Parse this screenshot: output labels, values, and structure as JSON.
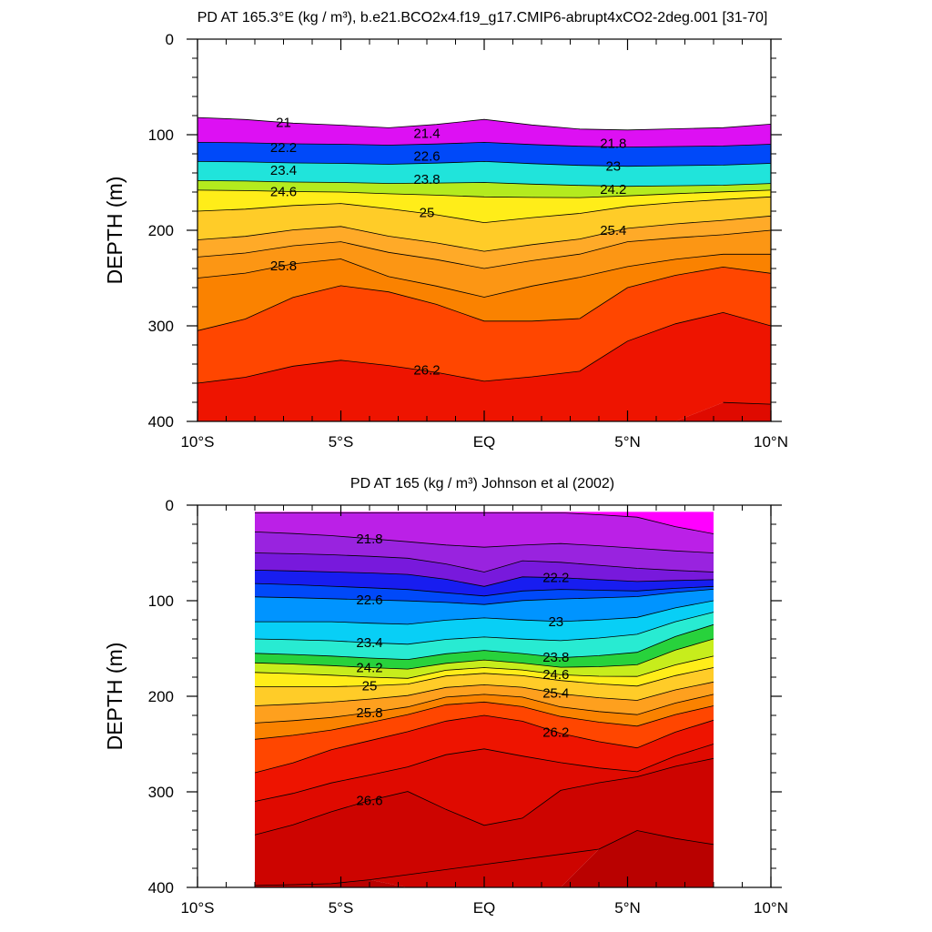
{
  "panels": [
    {
      "title": "PD AT 165.3°E (kg / m³), b.e21.BCO2x4.f19_g17.CMIP6-abrupt4xCO2-2deg.001 [31-70]",
      "ylabel": "DEPTH (m)"
    },
    {
      "title": "PD AT 165 (kg / m³) Johnson et al (2002)",
      "ylabel": "DEPTH (m)"
    }
  ],
  "chart_data": [
    {
      "type": "heatmap",
      "subtype": "filled-contour depth section",
      "title": "PD AT 165.3°E (kg / m³), b.e21.BCO2x4.f19_g17.CMIP6-abrupt4xCO2-2deg.001 [31-70]",
      "xlabel": "",
      "ylabel": "DEPTH (m)",
      "xlim": [
        -10,
        10
      ],
      "ylim": [
        400,
        0
      ],
      "x_ticks": [
        -10,
        -5,
        0,
        5,
        10
      ],
      "x_tick_labels": [
        "10°S",
        "5°S",
        "EQ",
        "5°N",
        "10°N"
      ],
      "y_ticks": [
        0,
        100,
        200,
        300,
        400
      ],
      "y_tick_labels": [
        "0",
        "100",
        "200",
        "300",
        "400"
      ],
      "x_range": [
        -10,
        10
      ],
      "contour_interval": 0.2,
      "x": [
        -10,
        -5,
        -3,
        0,
        3,
        5,
        8,
        10
      ],
      "contours": [
        {
          "level": 21.0,
          "depth": [
            82,
            90,
            93,
            84,
            94,
            95,
            93,
            89
          ]
        },
        {
          "level": 22.0,
          "depth": [
            108,
            110,
            111,
            108,
            112,
            113,
            112,
            110
          ]
        },
        {
          "level": 23.0,
          "depth": [
            128,
            130,
            131,
            128,
            132,
            133,
            132,
            130
          ]
        },
        {
          "level": 24.0,
          "depth": [
            148,
            150,
            151,
            150,
            153,
            154,
            153,
            151
          ]
        },
        {
          "level": 24.6,
          "depth": [
            158,
            160,
            162,
            165,
            166,
            164,
            160,
            158
          ]
        },
        {
          "level": 25.0,
          "depth": [
            180,
            172,
            178,
            192,
            183,
            175,
            168,
            165
          ]
        },
        {
          "level": 25.4,
          "depth": [
            210,
            196,
            207,
            222,
            210,
            198,
            190,
            185
          ]
        },
        {
          "level": 25.6,
          "depth": [
            228,
            212,
            224,
            240,
            226,
            212,
            205,
            200
          ]
        },
        {
          "level": 25.8,
          "depth": [
            250,
            230,
            250,
            270,
            250,
            238,
            225,
            225
          ]
        },
        {
          "level": 26.0,
          "depth": [
            305,
            258,
            265,
            295,
            295,
            260,
            238,
            245
          ]
        },
        {
          "level": 26.2,
          "depth": [
            360,
            336,
            342,
            358,
            350,
            316,
            285,
            300
          ]
        },
        {
          "level": 26.4,
          "depth": [
            999,
            999,
            999,
            999,
            999,
            999,
            380,
            382
          ]
        }
      ],
      "contour_labels": [
        "21",
        "21.4",
        "21.8",
        "22.2",
        "22.6",
        "23",
        "23.4",
        "23.8",
        "24.2",
        "24.6",
        "25",
        "25.4",
        "25.8",
        "26.2"
      ]
    },
    {
      "type": "heatmap",
      "subtype": "filled-contour depth section",
      "title": "PD AT 165 (kg / m³) Johnson et al (2002)",
      "xlabel": "",
      "ylabel": "DEPTH (m)",
      "xlim": [
        -10,
        10
      ],
      "ylim": [
        400,
        0
      ],
      "x_ticks": [
        -10,
        -5,
        0,
        5,
        10
      ],
      "x_tick_labels": [
        "10°S",
        "5°S",
        "EQ",
        "5°N",
        "10°N"
      ],
      "y_ticks": [
        0,
        100,
        200,
        300,
        400
      ],
      "y_tick_labels": [
        "0",
        "100",
        "200",
        "300",
        "400"
      ],
      "x_range": [
        -8,
        8
      ],
      "contour_interval": 0.2,
      "x": [
        -8,
        -5,
        -3,
        -1,
        0,
        1,
        3,
        5,
        8
      ],
      "contours": [
        {
          "level": 21.6,
          "depth": [
            8,
            8,
            8,
            8,
            8,
            8,
            8,
            12,
            30
          ]
        },
        {
          "level": 21.8,
          "depth": [
            28,
            32,
            38,
            42,
            44,
            42,
            40,
            45,
            50
          ]
        },
        {
          "level": 22.0,
          "depth": [
            50,
            52,
            55,
            62,
            70,
            58,
            60,
            66,
            70
          ]
        },
        {
          "level": 22.2,
          "depth": [
            68,
            70,
            72,
            78,
            85,
            75,
            76,
            80,
            78
          ]
        },
        {
          "level": 22.4,
          "depth": [
            82,
            85,
            88,
            92,
            95,
            90,
            88,
            90,
            85
          ]
        },
        {
          "level": 22.6,
          "depth": [
            96,
            98,
            100,
            102,
            104,
            100,
            98,
            96,
            88
          ]
        },
        {
          "level": 23.0,
          "depth": [
            122,
            122,
            125,
            120,
            118,
            120,
            122,
            118,
            100
          ]
        },
        {
          "level": 23.4,
          "depth": [
            140,
            142,
            146,
            140,
            138,
            140,
            142,
            136,
            112
          ]
        },
        {
          "level": 23.8,
          "depth": [
            155,
            158,
            162,
            155,
            152,
            155,
            160,
            155,
            125
          ]
        },
        {
          "level": 24.2,
          "depth": [
            165,
            168,
            172,
            165,
            162,
            165,
            170,
            168,
            140
          ]
        },
        {
          "level": 24.6,
          "depth": [
            175,
            178,
            182,
            172,
            170,
            172,
            178,
            180,
            158
          ]
        },
        {
          "level": 25.0,
          "depth": [
            190,
            190,
            188,
            178,
            176,
            178,
            184,
            190,
            170
          ]
        },
        {
          "level": 25.4,
          "depth": [
            210,
            206,
            200,
            190,
            188,
            190,
            198,
            205,
            185
          ]
        },
        {
          "level": 25.8,
          "depth": [
            228,
            222,
            212,
            200,
            198,
            200,
            212,
            220,
            198
          ]
        },
        {
          "level": 26.0,
          "depth": [
            245,
            235,
            220,
            208,
            206,
            210,
            222,
            232,
            210
          ]
        },
        {
          "level": 26.2,
          "depth": [
            280,
            255,
            238,
            225,
            220,
            225,
            240,
            255,
            225
          ]
        },
        {
          "level": 26.4,
          "depth": [
            310,
            290,
            275,
            260,
            255,
            262,
            270,
            280,
            250
          ]
        },
        {
          "level": 26.6,
          "depth": [
            345,
            320,
            298,
            320,
            335,
            330,
            296,
            285,
            265
          ]
        },
        {
          "level": 26.8,
          "depth": [
            398,
            396,
            388,
            999,
            999,
            999,
            380,
            340,
            355
          ]
        }
      ],
      "contour_labels": [
        "21.8",
        "22.2",
        "22.6",
        "23",
        "23.4",
        "23.8",
        "24.2",
        "24.6",
        "25",
        "25.4",
        "25.8",
        "26.2",
        "26.6"
      ]
    }
  ]
}
